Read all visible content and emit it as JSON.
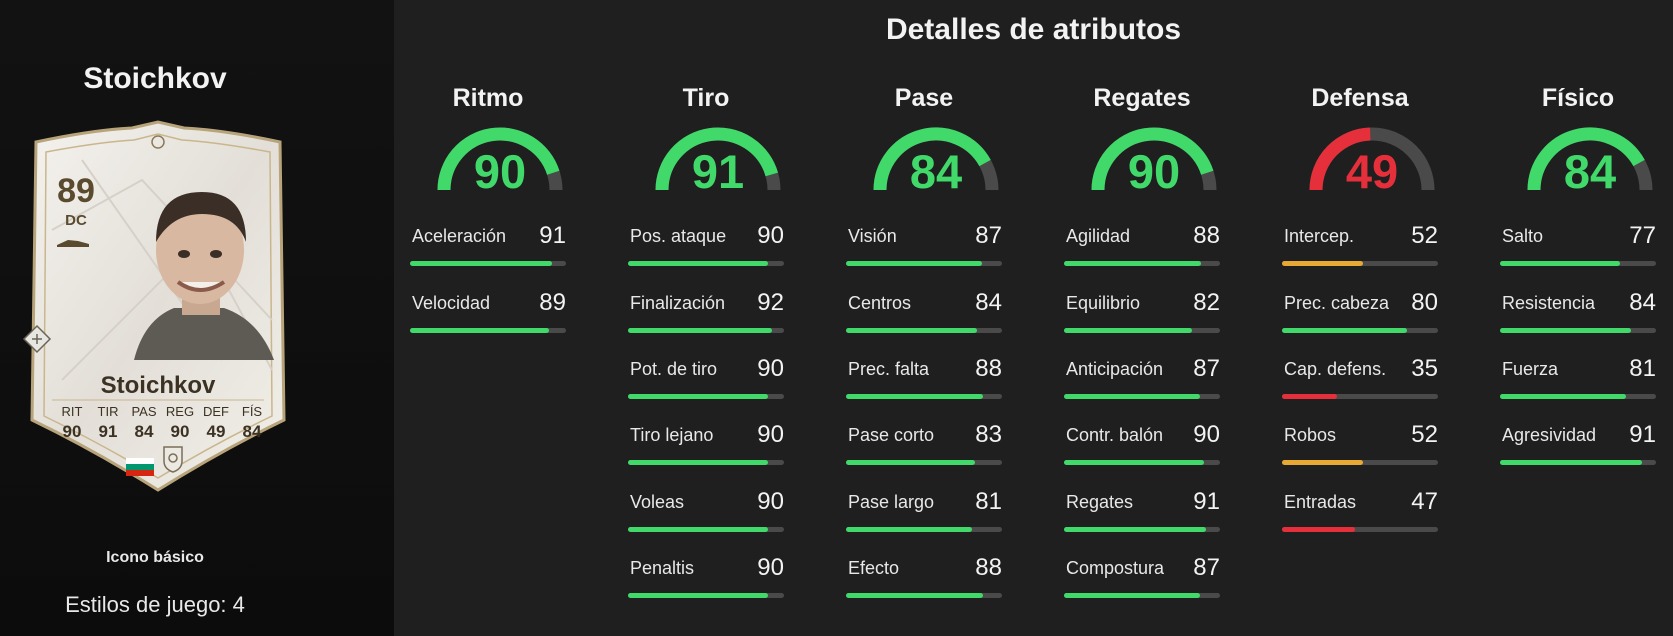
{
  "player": {
    "name": "Stoichkov",
    "card_version": "Icono básico",
    "playstyles_label": "Estilos de juego: 4"
  },
  "card": {
    "rating": "89",
    "position": "DC",
    "name": "Stoichkov",
    "stats": [
      {
        "label": "RIT",
        "value": "90"
      },
      {
        "label": "TIR",
        "value": "91"
      },
      {
        "label": "PAS",
        "value": "84"
      },
      {
        "label": "REG",
        "value": "90"
      },
      {
        "label": "DEF",
        "value": "49"
      },
      {
        "label": "FÍS",
        "value": "84"
      }
    ],
    "flag_icon": "bulgaria-flag-icon",
    "club_icon": "icons-badge-icon"
  },
  "section_title": "Detalles de atributos",
  "colors": {
    "high": "#40d96a",
    "mid": "#e8a834",
    "low": "#e5303c",
    "track": "#4a4a4a"
  },
  "categories": [
    {
      "name": "Ritmo",
      "value": 90,
      "attributes": [
        {
          "name": "Aceleración",
          "value": 91
        },
        {
          "name": "Velocidad",
          "value": 89
        }
      ]
    },
    {
      "name": "Tiro",
      "value": 91,
      "attributes": [
        {
          "name": "Pos. ataque",
          "value": 90
        },
        {
          "name": "Finalización",
          "value": 92
        },
        {
          "name": "Pot. de tiro",
          "value": 90
        },
        {
          "name": "Tiro lejano",
          "value": 90
        },
        {
          "name": "Voleas",
          "value": 90
        },
        {
          "name": "Penaltis",
          "value": 90
        }
      ]
    },
    {
      "name": "Pase",
      "value": 84,
      "attributes": [
        {
          "name": "Visión",
          "value": 87
        },
        {
          "name": "Centros",
          "value": 84
        },
        {
          "name": "Prec. falta",
          "value": 88
        },
        {
          "name": "Pase corto",
          "value": 83
        },
        {
          "name": "Pase largo",
          "value": 81
        },
        {
          "name": "Efecto",
          "value": 88
        }
      ]
    },
    {
      "name": "Regates",
      "value": 90,
      "attributes": [
        {
          "name": "Agilidad",
          "value": 88
        },
        {
          "name": "Equilibrio",
          "value": 82
        },
        {
          "name": "Anticipación",
          "value": 87
        },
        {
          "name": "Contr. balón",
          "value": 90
        },
        {
          "name": "Regates",
          "value": 91
        },
        {
          "name": "Compostura",
          "value": 87
        }
      ]
    },
    {
      "name": "Defensa",
      "value": 49,
      "attributes": [
        {
          "name": "Intercep.",
          "value": 52
        },
        {
          "name": "Prec. cabeza",
          "value": 80
        },
        {
          "name": "Cap. defens.",
          "value": 35
        },
        {
          "name": "Robos",
          "value": 52
        },
        {
          "name": "Entradas",
          "value": 47
        }
      ]
    },
    {
      "name": "Físico",
      "value": 84,
      "attributes": [
        {
          "name": "Salto",
          "value": 77
        },
        {
          "name": "Resistencia",
          "value": 84
        },
        {
          "name": "Fuerza",
          "value": 81
        },
        {
          "name": "Agresividad",
          "value": 91
        }
      ]
    }
  ]
}
